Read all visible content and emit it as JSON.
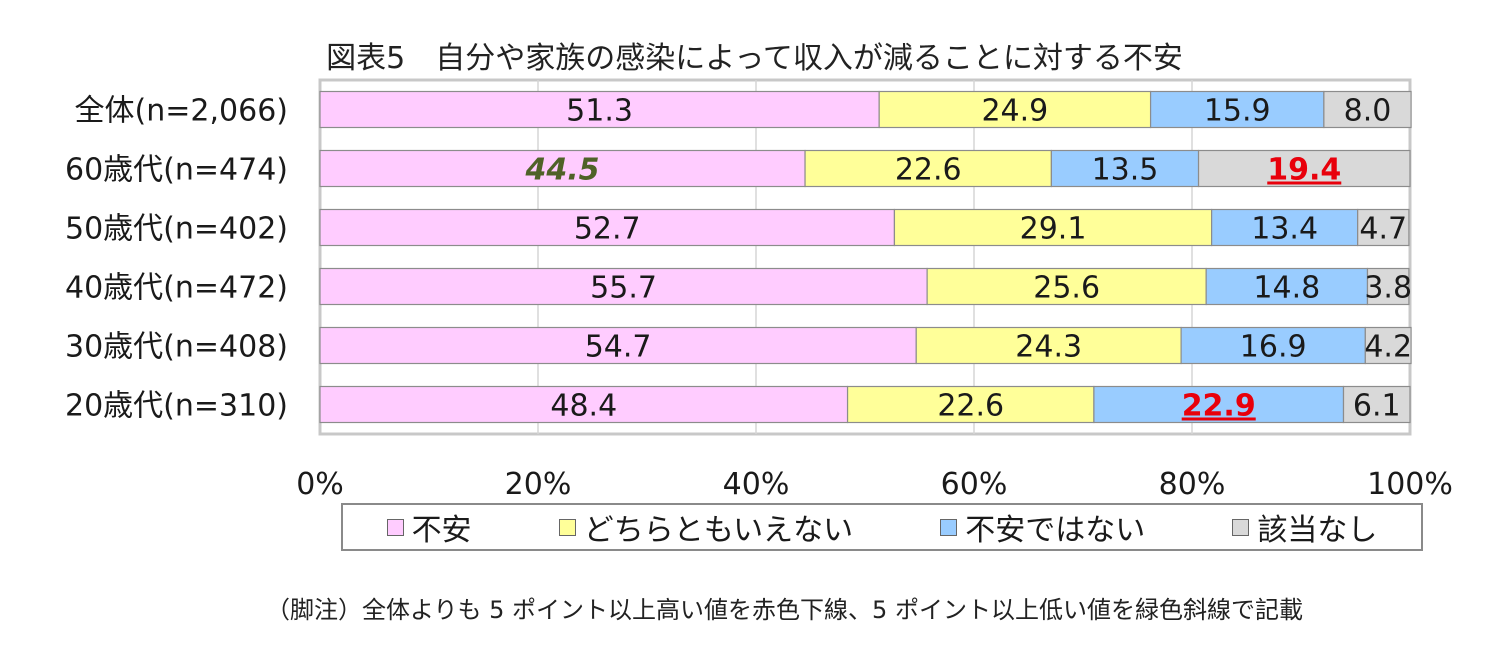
{
  "chart_data": {
    "type": "bar",
    "orientation": "horizontal",
    "stacked": true,
    "title": "図表5　自分や家族の感染によって収入が減ることに対する不安",
    "categories": [
      "全体(n=2,066)",
      "60歳代(n=474)",
      "50歳代(n=402)",
      "40歳代(n=472)",
      "30歳代(n=408)",
      "20歳代(n=310)"
    ],
    "series": [
      {
        "name": "不安",
        "color": "#FFCCFF",
        "values": [
          51.3,
          44.5,
          52.7,
          55.7,
          54.7,
          48.4
        ],
        "labels": [
          "51.3",
          "44.5",
          "52.7",
          "55.7",
          "54.7",
          "48.4"
        ]
      },
      {
        "name": "どちらともいえない",
        "color": "#FFFF99",
        "values": [
          24.9,
          22.6,
          29.1,
          25.6,
          24.3,
          22.6
        ],
        "labels": [
          "24.9",
          "22.6",
          "29.1",
          "25.6",
          "24.3",
          "22.6"
        ]
      },
      {
        "name": "不安ではない",
        "color": "#99CCFF",
        "values": [
          15.9,
          13.5,
          13.4,
          14.8,
          16.9,
          22.9
        ],
        "labels": [
          "15.9",
          "13.5",
          "13.4",
          "14.8",
          "16.9",
          "22.9"
        ]
      },
      {
        "name": "該当なし",
        "color": "#D9D9D9",
        "values": [
          8.0,
          19.4,
          4.7,
          3.8,
          4.2,
          6.1
        ],
        "labels": [
          "8.0",
          "19.4",
          "4.7",
          "3.8",
          "4.2",
          "6.1"
        ]
      }
    ],
    "highlights": [
      {
        "category_index": 1,
        "series_index": 0,
        "style": "green-italic-bold",
        "color": "#4F6228"
      },
      {
        "category_index": 1,
        "series_index": 3,
        "style": "red-underline-bold",
        "color": "#E8000B"
      },
      {
        "category_index": 5,
        "series_index": 2,
        "style": "red-underline-bold",
        "color": "#E8000B"
      }
    ],
    "xlim": [
      0,
      100
    ],
    "xticks": [
      "0%",
      "20%",
      "40%",
      "60%",
      "80%",
      "100%"
    ],
    "grid": true,
    "legend_position": "bottom"
  },
  "footnote": "（脚注）全体よりも 5 ポイント以上高い値を赤色下線、5 ポイント以上低い値を緑色斜線で記載"
}
